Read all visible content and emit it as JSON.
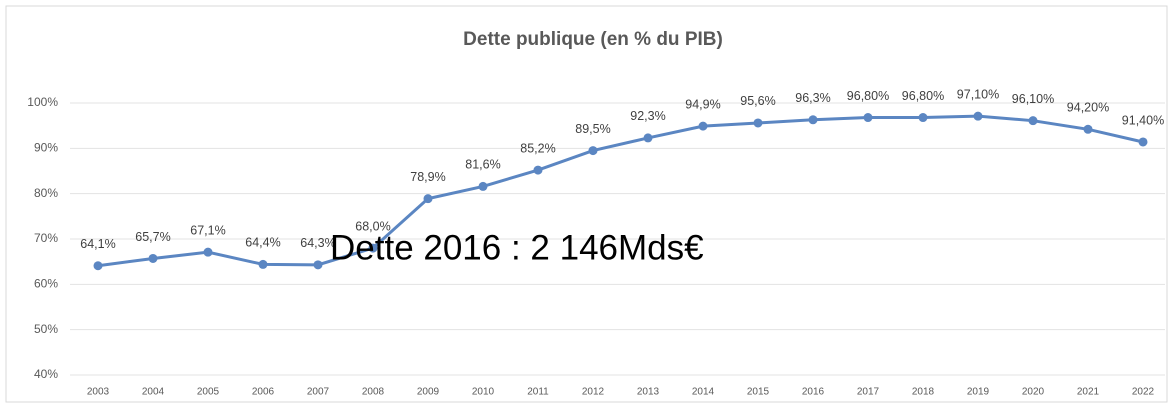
{
  "chart_data": {
    "type": "line",
    "title": "Dette publique (en % du PIB)",
    "annotation": "Dette 2016 : 2 146Mds€",
    "categories": [
      "2003",
      "2004",
      "2005",
      "2006",
      "2007",
      "2008",
      "2009",
      "2010",
      "2011",
      "2012",
      "2013",
      "2014",
      "2015",
      "2016",
      "2017",
      "2018",
      "2019",
      "2020",
      "2021",
      "2022"
    ],
    "series": [
      {
        "name": "Dette publique",
        "color": "#5b86c2",
        "values": [
          64.1,
          65.7,
          67.1,
          64.4,
          64.3,
          68.0,
          78.9,
          81.6,
          85.2,
          89.5,
          92.3,
          94.9,
          95.6,
          96.3,
          96.8,
          96.8,
          97.1,
          96.1,
          94.2,
          91.4
        ],
        "value_labels": [
          "64,1%",
          "65,7%",
          "67,1%",
          "64,4%",
          "64,3%",
          "68,0%",
          "78,9%",
          "81,6%",
          "85,2%",
          "89,5%",
          "92,3%",
          "94,9%",
          "95,6%",
          "96,3%",
          "96,80%",
          "96,80%",
          "97,10%",
          "96,10%",
          "94,20%",
          "91,40%"
        ]
      }
    ],
    "ylim": [
      40,
      100
    ],
    "yticks": [
      {
        "value": 40,
        "label": "40%"
      },
      {
        "value": 50,
        "label": "50%"
      },
      {
        "value": 60,
        "label": "60%"
      },
      {
        "value": 70,
        "label": "70%"
      },
      {
        "value": 80,
        "label": "80%"
      },
      {
        "value": 90,
        "label": "90%"
      },
      {
        "value": 100,
        "label": "100%"
      }
    ],
    "grid": true
  }
}
